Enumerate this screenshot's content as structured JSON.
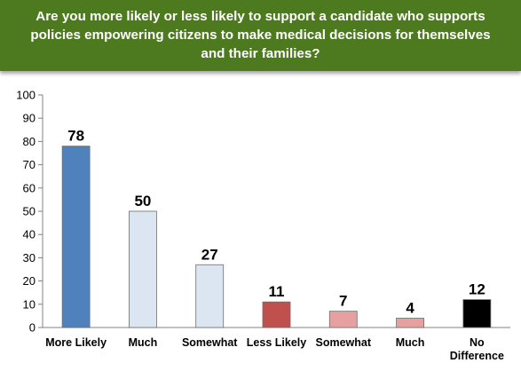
{
  "chart_data": {
    "type": "bar",
    "title": "Are you more likely or less likely to support a candidate who supports policies empowering citizens to make medical decisions for themselves and their families?",
    "categories": [
      [
        "More Likely"
      ],
      [
        "Much"
      ],
      [
        "Somewhat"
      ],
      [
        "Less Likely"
      ],
      [
        "Somewhat"
      ],
      [
        "Much"
      ],
      [
        "No",
        "Difference"
      ]
    ],
    "values": [
      78,
      50,
      27,
      11,
      7,
      4,
      12
    ],
    "bar_colors": [
      "#4f81bd",
      "#dce6f2",
      "#dce6f2",
      "#c0504d",
      "#e6a0a0",
      "#e6a0a0",
      "#000000"
    ],
    "ylim": [
      0,
      100
    ],
    "yticks": [
      0,
      10,
      20,
      30,
      40,
      50,
      60,
      70,
      80,
      90,
      100
    ],
    "grid": false,
    "legend": "none"
  }
}
